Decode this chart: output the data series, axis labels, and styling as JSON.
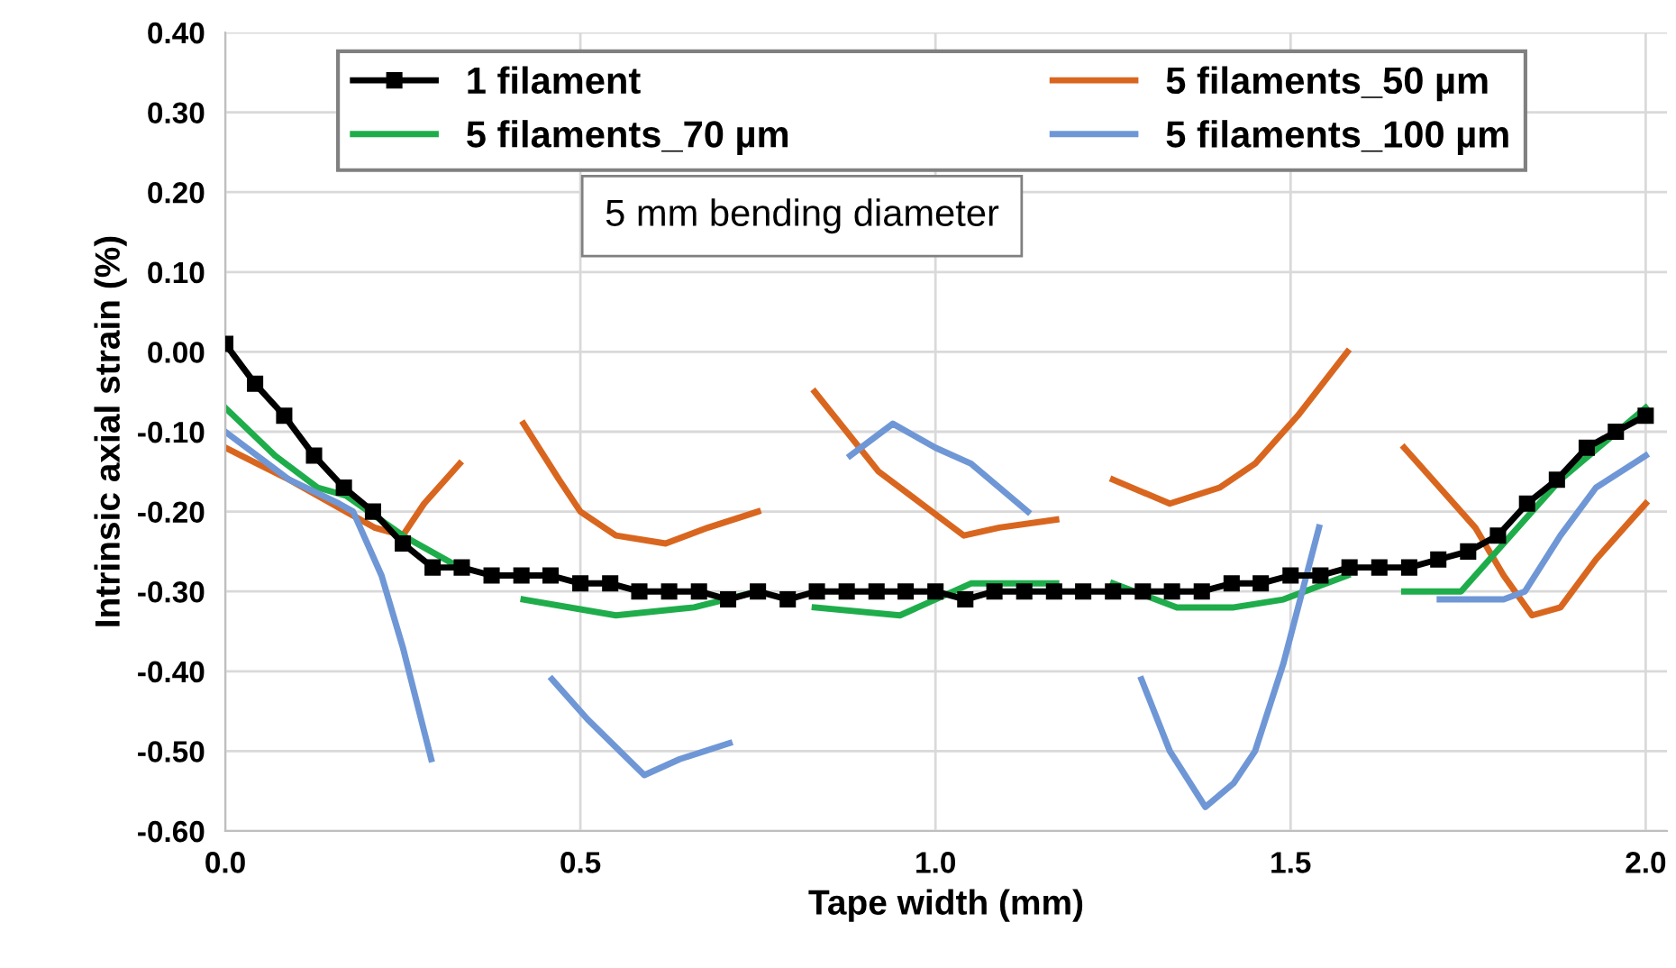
{
  "chart_data": {
    "type": "line",
    "xlabel": "Tape width (mm)",
    "ylabel": "Intrinsic axial strain (%)",
    "annotations": [
      "5 mm bending diameter"
    ],
    "xlim": [
      0,
      2.03
    ],
    "xticks": [
      {
        "value": 0,
        "label": "0.0"
      },
      {
        "value": 0.5,
        "label": "0.5"
      },
      {
        "value": 1.0,
        "label": "1.0"
      },
      {
        "value": 1.5,
        "label": "1.5"
      },
      {
        "value": 2.0,
        "label": "2.0"
      }
    ],
    "ylim": [
      -0.6,
      0.4
    ],
    "yticks": [
      {
        "value": -0.6,
        "label": "-0.60"
      },
      {
        "value": -0.5,
        "label": "-0.50"
      },
      {
        "value": -0.4,
        "label": "-0.40"
      },
      {
        "value": -0.3,
        "label": "-0.30"
      },
      {
        "value": -0.2,
        "label": "-0.20"
      },
      {
        "value": -0.1,
        "label": "-0.10"
      },
      {
        "value": 0,
        "label": "0.00"
      },
      {
        "value": 0.1,
        "label": "0.10"
      },
      {
        "value": 0.2,
        "label": "0.20"
      },
      {
        "value": 0.3,
        "label": "0.30"
      },
      {
        "value": 0.4,
        "label": "0.40"
      }
    ],
    "grid": true,
    "legend": "top",
    "series": [
      {
        "name": "1 filament",
        "color": "#000000",
        "marker": "square",
        "line_style": "solid",
        "x": [
          0,
          0.042,
          0.083,
          0.125,
          0.167,
          0.208,
          0.25,
          0.292,
          0.333,
          0.375,
          0.417,
          0.458,
          0.5,
          0.542,
          0.583,
          0.625,
          0.667,
          0.708,
          0.75,
          0.792,
          0.833,
          0.875,
          0.917,
          0.958,
          1.0,
          1.042,
          1.083,
          1.125,
          1.167,
          1.208,
          1.25,
          1.292,
          1.333,
          1.375,
          1.417,
          1.458,
          1.5,
          1.542,
          1.583,
          1.625,
          1.667,
          1.708,
          1.75,
          1.792,
          1.833,
          1.875,
          1.917,
          1.958,
          2.0
        ],
        "values": [
          0.01,
          -0.04,
          -0.08,
          -0.13,
          -0.17,
          -0.2,
          -0.24,
          -0.27,
          -0.27,
          -0.28,
          -0.28,
          -0.28,
          -0.29,
          -0.29,
          -0.3,
          -0.3,
          -0.3,
          -0.31,
          -0.3,
          -0.31,
          -0.3,
          -0.3,
          -0.3,
          -0.3,
          -0.3,
          -0.31,
          -0.3,
          -0.3,
          -0.3,
          -0.3,
          -0.3,
          -0.3,
          -0.3,
          -0.3,
          -0.29,
          -0.29,
          -0.28,
          -0.28,
          -0.27,
          -0.27,
          -0.27,
          -0.26,
          -0.25,
          -0.23,
          -0.19,
          -0.16,
          -0.12,
          -0.1,
          -0.08
        ]
      },
      {
        "name": "5 filaments_50 µm",
        "color": "#d9661f",
        "marker": "none",
        "line_style": "solid",
        "x": [
          0,
          0.09,
          0.17,
          0.21,
          0.25,
          0.28,
          0.33,
          null,
          0.42,
          0.47,
          0.5,
          0.55,
          0.62,
          0.68,
          0.75,
          null,
          0.83,
          0.92,
          0.98,
          1.04,
          1.09,
          1.17,
          null,
          1.25,
          1.33,
          1.4,
          1.45,
          1.51,
          1.58,
          null,
          1.66,
          1.71,
          1.76,
          1.8,
          1.84,
          1.88,
          1.93,
          2.0
        ],
        "values": [
          -0.12,
          -0.16,
          -0.2,
          -0.22,
          -0.23,
          -0.19,
          -0.14,
          null,
          -0.09,
          -0.16,
          -0.2,
          -0.23,
          -0.24,
          -0.22,
          -0.2,
          null,
          -0.05,
          -0.15,
          -0.19,
          -0.23,
          -0.22,
          -0.21,
          null,
          -0.16,
          -0.19,
          -0.17,
          -0.14,
          -0.08,
          0.0,
          null,
          -0.12,
          -0.17,
          -0.22,
          -0.28,
          -0.33,
          -0.32,
          -0.26,
          -0.19
        ]
      },
      {
        "name": "5 filaments_70 µm",
        "color": "#1fad4b",
        "marker": "none",
        "line_style": "solid",
        "x": [
          0,
          0.07,
          0.13,
          0.17,
          0.25,
          0.33,
          null,
          0.42,
          0.55,
          0.66,
          0.75,
          null,
          0.83,
          0.95,
          1.05,
          1.17,
          null,
          1.25,
          1.34,
          1.42,
          1.49,
          1.58,
          null,
          1.66,
          1.74,
          1.8,
          1.88,
          2.0
        ],
        "values": [
          -0.07,
          -0.13,
          -0.17,
          -0.18,
          -0.23,
          -0.27,
          null,
          -0.31,
          -0.33,
          -0.32,
          -0.3,
          null,
          -0.32,
          -0.33,
          -0.29,
          -0.29,
          null,
          -0.29,
          -0.32,
          -0.32,
          -0.31,
          -0.28,
          null,
          -0.3,
          -0.3,
          -0.24,
          -0.16,
          -0.07
        ]
      },
      {
        "name": "5 filaments_100 µm",
        "color": "#6f97d6",
        "marker": "none",
        "line_style": "solid",
        "x": [
          0,
          0.09,
          0.16,
          0.18,
          0.22,
          0.25,
          0.29,
          null,
          0.46,
          0.51,
          0.59,
          0.64,
          0.71,
          null,
          0.88,
          0.94,
          1.0,
          1.05,
          1.13,
          null,
          1.29,
          1.33,
          1.38,
          1.42,
          1.45,
          1.49,
          1.54,
          null,
          1.71,
          1.8,
          1.83,
          1.88,
          1.93,
          2.0
        ],
        "values": [
          -0.1,
          -0.16,
          -0.19,
          -0.2,
          -0.28,
          -0.37,
          -0.51,
          null,
          -0.41,
          -0.46,
          -0.53,
          -0.51,
          -0.49,
          null,
          -0.13,
          -0.09,
          -0.12,
          -0.14,
          -0.2,
          null,
          -0.41,
          -0.5,
          -0.57,
          -0.54,
          -0.5,
          -0.39,
          -0.22,
          null,
          -0.31,
          -0.31,
          -0.3,
          -0.23,
          -0.17,
          -0.13
        ]
      }
    ]
  }
}
